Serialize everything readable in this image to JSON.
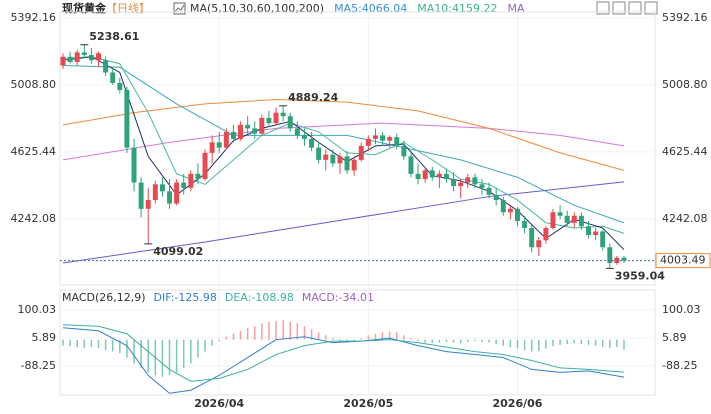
{
  "header": {
    "title": "现货黄金",
    "period": "【日线】",
    "ma_setting": "MA(5,10,30,60,100,200)",
    "ma5": "MA5:4066.04",
    "ma10": "MA10:4159.22",
    "ma_more": "MA"
  },
  "chart_data": [
    {
      "type": "candlestick",
      "up_color": "#e8484f",
      "down_color": "#2ea37a",
      "open": [
        5120,
        5170,
        5140,
        5195,
        5180,
        5150,
        5150,
        5080,
        5020,
        4980,
        4650,
        4450,
        4300,
        4350,
        4440,
        4400,
        4330,
        4450,
        4420,
        4500,
        4470,
        4620,
        4680,
        4650,
        4740,
        4700,
        4780,
        4760,
        4730,
        4820,
        4790,
        4850,
        4830,
        4760,
        4720,
        4700,
        4650,
        4580,
        4610,
        4560,
        4600,
        4520,
        4580,
        4660,
        4700,
        4720,
        4690,
        4710,
        4660,
        4600,
        4500,
        4470,
        4520,
        4480,
        4500,
        4470,
        4430,
        4450,
        4480,
        4440,
        4420,
        4380,
        4350,
        4280,
        4300,
        4230,
        4190,
        4080,
        4120,
        4190,
        4280,
        4260,
        4220,
        4260,
        4200,
        4150,
        4170,
        4080,
        3990,
        4020
      ],
      "high": [
        5190,
        5200,
        5210,
        5238.61,
        5220,
        5200,
        5170,
        5110,
        5050,
        5000,
        4700,
        4480,
        4420,
        4460,
        4480,
        4470,
        4470,
        4500,
        4520,
        4560,
        4640,
        4720,
        4740,
        4760,
        4780,
        4800,
        4830,
        4800,
        4840,
        4860,
        4880,
        4889.24,
        4850,
        4800,
        4760,
        4740,
        4680,
        4640,
        4640,
        4620,
        4630,
        4600,
        4680,
        4720,
        4760,
        4740,
        4720,
        4730,
        4690,
        4620,
        4560,
        4540,
        4540,
        4520,
        4530,
        4510,
        4470,
        4500,
        4500,
        4470,
        4450,
        4420,
        4370,
        4320,
        4310,
        4260,
        4210,
        4140,
        4200,
        4300,
        4320,
        4290,
        4280,
        4280,
        4230,
        4190,
        4180,
        4100,
        4030,
        4030
      ],
      "low": [
        5100,
        5130,
        5120,
        5160,
        5130,
        5110,
        5060,
        5010,
        4960,
        4620,
        4400,
        4250,
        4099.02,
        4330,
        4370,
        4300,
        4320,
        4380,
        4400,
        4440,
        4460,
        4560,
        4620,
        4640,
        4680,
        4690,
        4730,
        4700,
        4720,
        4770,
        4780,
        4800,
        4740,
        4700,
        4660,
        4630,
        4560,
        4520,
        4540,
        4500,
        4500,
        4490,
        4570,
        4630,
        4670,
        4660,
        4650,
        4640,
        4580,
        4480,
        4440,
        4450,
        4460,
        4420,
        4450,
        4400,
        4360,
        4420,
        4420,
        4380,
        4360,
        4320,
        4260,
        4240,
        4200,
        4160,
        4050,
        4030,
        4100,
        4180,
        4240,
        4200,
        4190,
        4180,
        4130,
        4120,
        4060,
        3959.04,
        3980,
        3990
      ],
      "close": [
        5170,
        5140,
        5195,
        5180,
        5150,
        5190,
        5080,
        5020,
        4980,
        4650,
        4450,
        4300,
        4350,
        4440,
        4400,
        4330,
        4450,
        4420,
        4500,
        4470,
        4620,
        4680,
        4650,
        4740,
        4700,
        4780,
        4760,
        4730,
        4820,
        4790,
        4850,
        4830,
        4760,
        4720,
        4700,
        4650,
        4580,
        4610,
        4560,
        4600,
        4520,
        4580,
        4660,
        4700,
        4720,
        4690,
        4710,
        4660,
        4600,
        4500,
        4470,
        4520,
        4480,
        4500,
        4470,
        4430,
        4450,
        4480,
        4440,
        4420,
        4380,
        4350,
        4280,
        4300,
        4230,
        4190,
        4080,
        4120,
        4190,
        4280,
        4260,
        4220,
        4260,
        4200,
        4150,
        4170,
        4080,
        3990,
        4020,
        4003.49
      ],
      "ylim": [
        3864,
        5426
      ],
      "yticks": [
        5392.16,
        {
          "value": 5008.8,
          "label": "5008.80"
        },
        4625.44,
        4242.08
      ],
      "xlim": [
        0,
        79
      ],
      "xticks": [
        {
          "value": 22,
          "label": "2026/04"
        },
        {
          "value": 43,
          "label": "2026/05"
        },
        {
          "value": 64,
          "label": "2026/06"
        }
      ],
      "series": [
        {
          "color": "#6a5acd",
          "x": [
            0,
            20,
            40,
            60,
            79
          ],
          "values": [
            3990,
            4110,
            4240,
            4370,
            4454
          ]
        },
        {
          "color": "#d47ad4",
          "x": [
            0,
            15,
            30,
            45,
            60,
            70,
            79
          ],
          "values": [
            4580,
            4680,
            4760,
            4790,
            4760,
            4720,
            4660
          ]
        },
        {
          "color": "#f08a3c",
          "x": [
            0,
            10,
            20,
            30,
            40,
            50,
            60,
            70,
            79
          ],
          "values": [
            4780,
            4850,
            4900,
            4925,
            4910,
            4860,
            4760,
            4620,
            4520
          ]
        },
        {
          "color": "#3fa6b8",
          "x": [
            0,
            8,
            16,
            24,
            32,
            40,
            48,
            56,
            64,
            72,
            79
          ],
          "values": [
            5120,
            5110,
            4900,
            4720,
            4720,
            4720,
            4650,
            4580,
            4480,
            4320,
            4220
          ]
        },
        {
          "color": "#48b8a0",
          "x": [
            0,
            4,
            8,
            12,
            16,
            20,
            24,
            28,
            32,
            36,
            40,
            44,
            48,
            52,
            56,
            60,
            64,
            68,
            72,
            76,
            79
          ],
          "values": [
            5160,
            5170,
            5130,
            4850,
            4500,
            4440,
            4580,
            4720,
            4790,
            4740,
            4620,
            4610,
            4680,
            4580,
            4470,
            4440,
            4350,
            4220,
            4190,
            4200,
            4159.22
          ]
        },
        {
          "color": "#1f2d6b",
          "x": [
            0,
            4,
            8,
            12,
            16,
            20,
            24,
            28,
            32,
            36,
            40,
            44,
            48,
            52,
            56,
            60,
            64,
            68,
            72,
            76,
            79
          ],
          "values": [
            5150,
            5170,
            5080,
            4600,
            4380,
            4500,
            4690,
            4760,
            4800,
            4680,
            4570,
            4660,
            4670,
            4490,
            4460,
            4400,
            4290,
            4130,
            4240,
            4190,
            4066.04
          ]
        }
      ]
    },
    {
      "type": "macd",
      "title": "MACD(26,12,9)",
      "dif_label": "DIF:-125.98",
      "dea_label": "DEA:-108.98",
      "macd_label": "MACD:-34.01",
      "up_color": "#f2a0a4",
      "down_color": "#7cc9ad",
      "histogram": [
        -20,
        -22,
        -25,
        -28,
        -25,
        -28,
        -35,
        -40,
        -45,
        -60,
        -80,
        -95,
        -110,
        -120,
        -125,
        -120,
        -110,
        -95,
        -80,
        -60,
        -40,
        -20,
        -5,
        10,
        20,
        30,
        40,
        45,
        55,
        60,
        62,
        65,
        60,
        55,
        45,
        35,
        25,
        15,
        5,
        -5,
        -10,
        -5,
        5,
        15,
        20,
        25,
        28,
        25,
        15,
        5,
        -5,
        -10,
        -12,
        -10,
        -8,
        -10,
        -12,
        -8,
        -5,
        -8,
        -10,
        -15,
        -20,
        -25,
        -30,
        -35,
        -40,
        -38,
        -30,
        -22,
        -18,
        -15,
        -12,
        -15,
        -18,
        -20,
        -25,
        -28,
        -25,
        -34.01
      ],
      "ylim": [
        -186,
        167
      ],
      "yticks": [
        100.03,
        5.89,
        -88.25
      ],
      "series": [
        {
          "color": "#2f7fd0",
          "x": [
            0,
            5,
            9,
            12,
            15,
            18,
            22,
            26,
            30,
            34,
            38,
            42,
            46,
            50,
            54,
            58,
            62,
            66,
            70,
            74,
            79
          ],
          "values": [
            40,
            30,
            -20,
            -120,
            -180,
            -170,
            -120,
            -60,
            0,
            10,
            -10,
            -5,
            5,
            -20,
            -40,
            -50,
            -60,
            -100,
            -110,
            -105,
            -125.98
          ]
        },
        {
          "color": "#3bb0a0",
          "x": [
            0,
            5,
            9,
            12,
            15,
            18,
            22,
            26,
            30,
            34,
            38,
            42,
            46,
            50,
            54,
            58,
            62,
            66,
            70,
            74,
            79
          ],
          "values": [
            50,
            45,
            20,
            -40,
            -100,
            -140,
            -130,
            -100,
            -50,
            -20,
            -5,
            -5,
            0,
            -10,
            -25,
            -40,
            -50,
            -70,
            -95,
            -100,
            -108.98
          ]
        }
      ]
    }
  ]
}
